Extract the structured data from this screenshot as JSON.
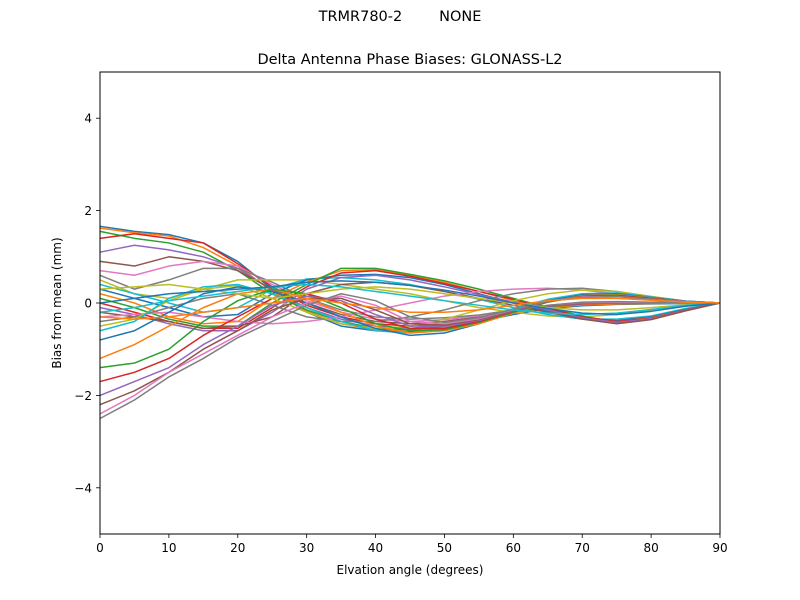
{
  "figure": {
    "suptitle": "TRMR780-2        NONE"
  },
  "chart_data": {
    "type": "line",
    "title": "Delta Antenna Phase Biases: GLONASS-L2",
    "xlabel": "Elvation angle (degrees)",
    "ylabel": "Bias from mean (mm)",
    "xlim": [
      0,
      90
    ],
    "ylim": [
      -5,
      5
    ],
    "xticks": [
      0,
      10,
      20,
      30,
      40,
      50,
      60,
      70,
      80,
      90
    ],
    "yticks": [
      -4,
      -2,
      0,
      2,
      4
    ],
    "xtick_labels": [
      "0",
      "10",
      "20",
      "30",
      "40",
      "50",
      "60",
      "70",
      "80",
      "90"
    ],
    "ytick_labels": [
      "−4",
      "−2",
      "0",
      "2",
      "4"
    ],
    "grid": false,
    "legend": "none",
    "colors": [
      "#1f77b4",
      "#ff7f0e",
      "#2ca02c",
      "#d62728",
      "#9467bd",
      "#8c564b",
      "#e377c2",
      "#7f7f7f",
      "#bcbd22",
      "#17becf"
    ],
    "x": [
      0,
      5,
      10,
      15,
      20,
      25,
      30,
      35,
      40,
      45,
      50,
      55,
      60,
      65,
      70,
      75,
      80,
      85,
      90
    ],
    "series": [
      {
        "values": [
          1.66,
          1.55,
          1.48,
          1.3,
          0.9,
          0.3,
          -0.2,
          -0.5,
          -0.6,
          -0.62,
          -0.55,
          -0.4,
          -0.25,
          -0.12,
          -0.06,
          -0.03,
          -0.02,
          -0.01,
          0.0
        ]
      },
      {
        "values": [
          1.62,
          1.52,
          1.45,
          1.2,
          0.8,
          0.25,
          -0.18,
          -0.45,
          -0.58,
          -0.6,
          -0.52,
          -0.38,
          -0.22,
          -0.1,
          -0.04,
          -0.02,
          -0.01,
          0.0,
          0.0
        ]
      },
      {
        "values": [
          1.55,
          1.4,
          1.3,
          1.1,
          0.7,
          0.2,
          -0.15,
          -0.4,
          -0.55,
          -0.58,
          -0.5,
          -0.35,
          -0.2,
          -0.08,
          -0.02,
          0.0,
          0.0,
          0.0,
          0.0
        ]
      },
      {
        "values": [
          1.4,
          1.5,
          1.4,
          1.3,
          0.85,
          0.35,
          -0.05,
          -0.3,
          -0.45,
          -0.5,
          -0.45,
          -0.32,
          -0.18,
          -0.07,
          -0.02,
          0.0,
          0.0,
          0.0,
          0.0
        ]
      },
      {
        "values": [
          1.1,
          1.25,
          1.15,
          1.0,
          0.75,
          0.28,
          -0.1,
          -0.35,
          -0.5,
          -0.55,
          -0.48,
          -0.34,
          -0.19,
          -0.07,
          -0.01,
          0.0,
          0.0,
          0.0,
          0.0
        ]
      },
      {
        "values": [
          0.9,
          0.8,
          1.0,
          0.9,
          0.7,
          0.3,
          0.0,
          -0.25,
          -0.4,
          -0.45,
          -0.4,
          -0.3,
          -0.17,
          -0.06,
          0.0,
          0.02,
          0.01,
          0.0,
          0.0
        ]
      },
      {
        "values": [
          0.7,
          0.6,
          0.8,
          0.9,
          0.8,
          0.4,
          0.05,
          -0.2,
          -0.35,
          -0.4,
          -0.36,
          -0.28,
          -0.16,
          -0.05,
          0.01,
          0.02,
          0.01,
          0.0,
          0.0
        ]
      },
      {
        "values": [
          0.6,
          0.3,
          0.5,
          0.75,
          0.75,
          0.45,
          0.1,
          -0.15,
          -0.3,
          -0.35,
          -0.32,
          -0.26,
          -0.15,
          -0.05,
          0.02,
          0.03,
          0.02,
          0.01,
          0.0
        ]
      },
      {
        "values": [
          0.5,
          0.2,
          0.1,
          0.3,
          0.5,
          0.5,
          0.5,
          0.4,
          0.3,
          0.2,
          0.05,
          -0.1,
          -0.2,
          -0.28,
          -0.3,
          -0.25,
          -0.15,
          -0.05,
          0.0
        ]
      },
      {
        "values": [
          0.4,
          0.2,
          0.0,
          -0.2,
          -0.1,
          0.3,
          0.52,
          0.55,
          0.5,
          0.4,
          0.25,
          0.08,
          -0.1,
          -0.25,
          -0.35,
          -0.35,
          -0.28,
          -0.12,
          0.0
        ]
      },
      {
        "values": [
          0.3,
          0.1,
          -0.1,
          -0.3,
          -0.25,
          0.2,
          0.5,
          0.6,
          0.62,
          0.55,
          0.4,
          0.2,
          0.0,
          -0.18,
          -0.32,
          -0.38,
          -0.3,
          -0.14,
          0.0
        ]
      },
      {
        "values": [
          0.2,
          0.0,
          -0.3,
          -0.45,
          -0.4,
          0.1,
          0.45,
          0.7,
          0.72,
          0.6,
          0.45,
          0.25,
          0.05,
          -0.15,
          -0.3,
          -0.4,
          -0.32,
          -0.15,
          0.0
        ]
      },
      {
        "values": [
          0.1,
          -0.1,
          -0.35,
          -0.5,
          -0.5,
          0.0,
          0.4,
          0.75,
          0.75,
          0.62,
          0.48,
          0.3,
          0.1,
          -0.1,
          -0.28,
          -0.42,
          -0.35,
          -0.16,
          0.0
        ]
      },
      {
        "values": [
          0.0,
          -0.2,
          -0.4,
          -0.55,
          -0.55,
          -0.1,
          0.35,
          0.65,
          0.7,
          0.58,
          0.42,
          0.25,
          0.08,
          -0.12,
          -0.3,
          -0.4,
          -0.33,
          -0.15,
          0.0
        ]
      },
      {
        "values": [
          -0.1,
          -0.25,
          -0.45,
          -0.6,
          -0.6,
          -0.2,
          0.3,
          0.55,
          0.6,
          0.5,
          0.35,
          0.18,
          0.02,
          -0.15,
          -0.32,
          -0.42,
          -0.34,
          -0.16,
          0.0
        ]
      },
      {
        "values": [
          -0.2,
          -0.3,
          -0.4,
          -0.55,
          -0.5,
          -0.3,
          0.2,
          0.4,
          0.45,
          0.38,
          0.25,
          0.1,
          -0.05,
          -0.2,
          -0.35,
          -0.45,
          -0.36,
          -0.17,
          0.0
        ]
      },
      {
        "values": [
          -0.3,
          -0.25,
          -0.2,
          -0.3,
          -0.4,
          -0.45,
          -0.4,
          -0.3,
          -0.15,
          0.0,
          0.15,
          0.25,
          0.3,
          0.32,
          0.28,
          0.2,
          0.1,
          0.03,
          0.0
        ]
      },
      {
        "values": [
          -0.4,
          -0.3,
          -0.1,
          0.1,
          0.2,
          -0.05,
          -0.3,
          -0.4,
          -0.4,
          -0.3,
          -0.15,
          0.05,
          0.2,
          0.3,
          0.32,
          0.25,
          0.14,
          0.04,
          0.0
        ]
      },
      {
        "values": [
          -0.5,
          -0.35,
          0.05,
          0.3,
          0.38,
          0.1,
          -0.2,
          -0.45,
          -0.55,
          -0.5,
          -0.35,
          -0.15,
          0.05,
          0.2,
          0.28,
          0.25,
          0.14,
          0.04,
          0.0
        ]
      },
      {
        "values": [
          -0.6,
          -0.4,
          0.1,
          0.35,
          0.4,
          0.2,
          -0.1,
          -0.4,
          -0.6,
          -0.65,
          -0.55,
          -0.35,
          -0.12,
          0.08,
          0.2,
          0.22,
          0.13,
          0.04,
          0.0
        ]
      },
      {
        "values": [
          -0.8,
          -0.6,
          -0.2,
          0.2,
          0.35,
          0.25,
          0.0,
          -0.3,
          -0.55,
          -0.7,
          -0.65,
          -0.45,
          -0.2,
          0.05,
          0.18,
          0.2,
          0.12,
          0.04,
          0.0
        ]
      },
      {
        "values": [
          -1.2,
          -0.9,
          -0.5,
          -0.1,
          0.2,
          0.3,
          0.1,
          -0.2,
          -0.5,
          -0.65,
          -0.6,
          -0.45,
          -0.22,
          0.02,
          0.16,
          0.18,
          0.11,
          0.03,
          0.0
        ]
      },
      {
        "values": [
          -1.4,
          -1.3,
          -1.0,
          -0.4,
          0.05,
          0.3,
          0.2,
          -0.1,
          -0.45,
          -0.6,
          -0.58,
          -0.42,
          -0.2,
          0.02,
          0.15,
          0.17,
          0.1,
          0.03,
          0.0
        ]
      },
      {
        "values": [
          -1.7,
          -1.5,
          -1.2,
          -0.7,
          -0.3,
          0.1,
          0.2,
          0.0,
          -0.35,
          -0.55,
          -0.55,
          -0.4,
          -0.18,
          0.03,
          0.14,
          0.16,
          0.1,
          0.03,
          0.0
        ]
      },
      {
        "values": [
          -2.0,
          -1.7,
          -1.4,
          -0.9,
          -0.5,
          -0.05,
          0.15,
          0.05,
          -0.25,
          -0.5,
          -0.5,
          -0.38,
          -0.17,
          0.03,
          0.13,
          0.15,
          0.09,
          0.03,
          0.0
        ]
      },
      {
        "values": [
          -2.2,
          -1.9,
          -1.5,
          -1.0,
          -0.6,
          -0.15,
          0.1,
          0.1,
          -0.15,
          -0.45,
          -0.48,
          -0.36,
          -0.16,
          0.03,
          0.13,
          0.15,
          0.09,
          0.03,
          0.0
        ]
      },
      {
        "values": [
          -2.4,
          -2.0,
          -1.5,
          -1.1,
          -0.7,
          -0.3,
          0.0,
          0.15,
          -0.05,
          -0.4,
          -0.45,
          -0.34,
          -0.15,
          0.04,
          0.13,
          0.14,
          0.08,
          0.03,
          0.0
        ]
      },
      {
        "values": [
          -2.5,
          -2.1,
          -1.6,
          -1.2,
          -0.75,
          -0.4,
          -0.05,
          0.2,
          0.05,
          -0.3,
          -0.42,
          -0.32,
          -0.14,
          0.04,
          0.12,
          0.14,
          0.08,
          0.02,
          0.0
        ]
      },
      {
        "values": [
          0.3,
          0.35,
          0.4,
          0.3,
          0.2,
          0.1,
          0.2,
          0.3,
          0.35,
          0.3,
          0.2,
          0.1,
          0.0,
          -0.1,
          -0.15,
          -0.15,
          -0.1,
          -0.04,
          0.0
        ]
      },
      {
        "values": [
          -0.2,
          -0.1,
          0.05,
          0.15,
          0.25,
          0.35,
          0.4,
          0.35,
          0.25,
          0.15,
          0.05,
          -0.05,
          -0.15,
          -0.22,
          -0.25,
          -0.22,
          -0.14,
          -0.05,
          0.0
        ]
      },
      {
        "values": [
          0.0,
          0.1,
          0.2,
          0.25,
          0.3,
          0.35,
          0.45,
          0.48,
          0.45,
          0.38,
          0.28,
          0.15,
          0.0,
          -0.12,
          -0.22,
          -0.25,
          -0.18,
          -0.07,
          0.0
        ]
      },
      {
        "values": [
          -0.3,
          -0.35,
          -0.3,
          -0.2,
          -0.1,
          0.0,
          0.1,
          0.0,
          -0.1,
          -0.2,
          -0.2,
          -0.15,
          -0.05,
          0.05,
          0.1,
          0.1,
          0.06,
          0.02,
          0.0
        ]
      }
    ]
  }
}
